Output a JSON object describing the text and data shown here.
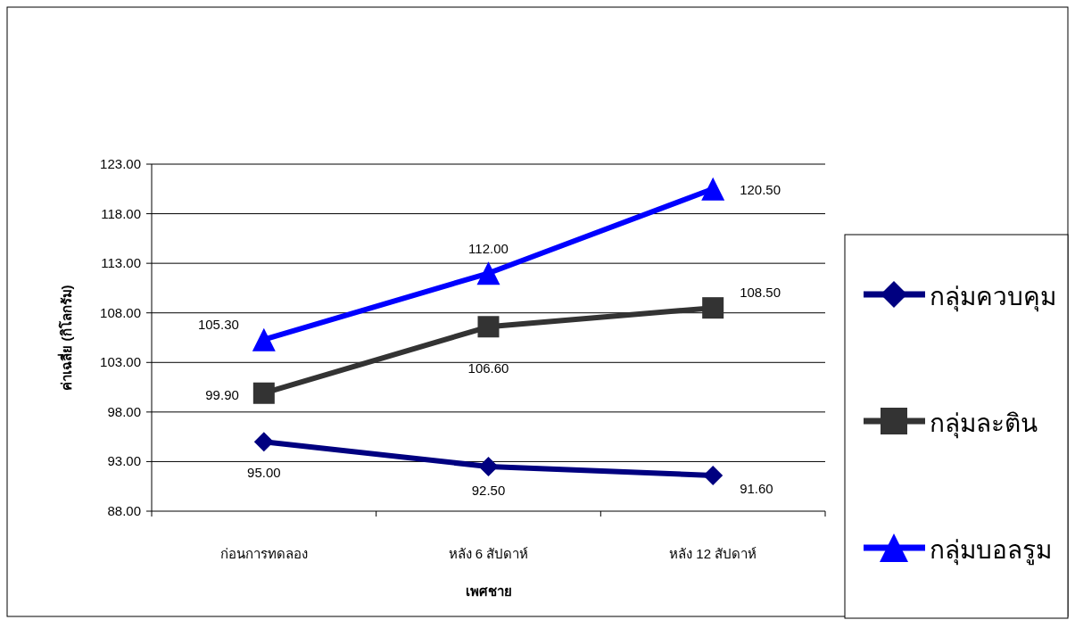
{
  "chart_data": {
    "type": "line",
    "xlabel": "เพศชาย",
    "ylabel": "ค่าเฉลี่ย (กิโลกรัม)",
    "categories": [
      "ก่อนการทดลอง",
      "หลัง 6 สัปดาห์",
      "หลัง 12 สัปดาห์"
    ],
    "series": [
      {
        "name": "กลุ่มควบคุม",
        "color": "#000080",
        "marker": "diamond",
        "values": [
          95.0,
          92.5,
          91.6
        ],
        "value_labels": [
          "95.00",
          "92.50",
          "91.60"
        ]
      },
      {
        "name": "กลุ่มละติน",
        "color": "#333333",
        "marker": "square",
        "values": [
          99.9,
          106.6,
          108.5
        ],
        "value_labels": [
          "99.90",
          "106.60",
          "108.50"
        ]
      },
      {
        "name": "กลุ่มบอลรูม",
        "color": "#0000ff",
        "marker": "triangle",
        "values": [
          105.3,
          112.0,
          120.5
        ],
        "value_labels": [
          "105.30",
          "112.00",
          "120.50"
        ]
      }
    ],
    "ylim": [
      88,
      123
    ],
    "yticks": [
      {
        "value": 88,
        "label": "88.00"
      },
      {
        "value": 93,
        "label": "93.00"
      },
      {
        "value": 98,
        "label": "98.00"
      },
      {
        "value": 103,
        "label": "103.00"
      },
      {
        "value": 108,
        "label": "108.00"
      },
      {
        "value": 113,
        "label": "113.00"
      },
      {
        "value": 118,
        "label": "118.00"
      },
      {
        "value": 123,
        "label": "123.00"
      }
    ],
    "grid": "y",
    "legend": "right"
  }
}
